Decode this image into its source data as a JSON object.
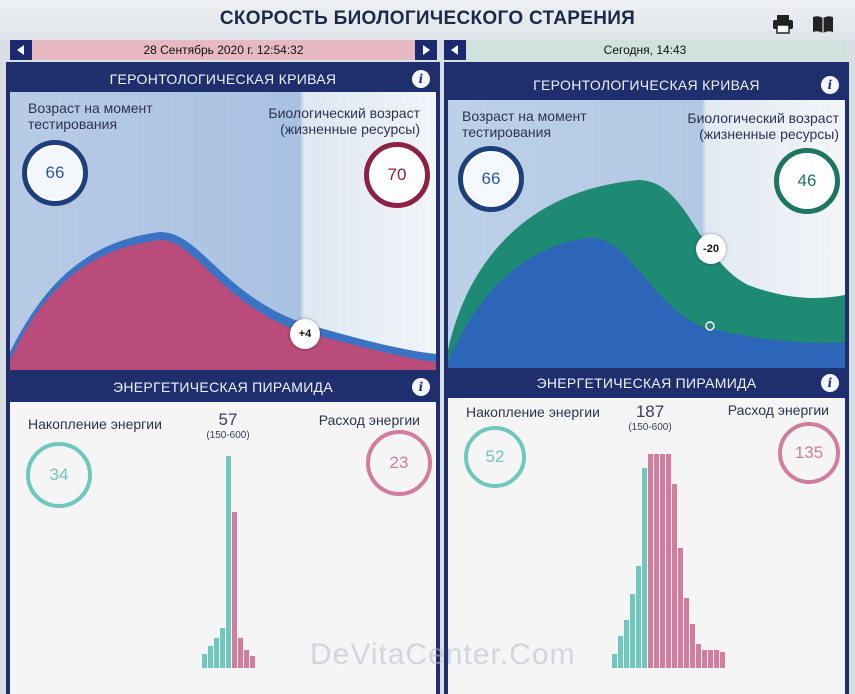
{
  "app": {
    "title": "СКОРОСТЬ БИОЛОГИЧЕСКОГО СТАРЕНИЯ"
  },
  "icons": {
    "print": "print-icon",
    "manual": "book-icon",
    "info": "info-icon"
  },
  "colors": {
    "navy": "#1f2f6d",
    "wine": "#8c2143",
    "blue": "#2d66b8",
    "teal": "#1e7561",
    "accumulation": "#6ec8bd",
    "expenditure": "#d27c9e"
  },
  "left": {
    "date": "28 Сентябрь 2020 г. 12:54:32",
    "curve": {
      "header": "ГЕРОНТОЛОГИЧЕСКАЯ КРИВАЯ",
      "info": "i",
      "test_age_label": "Возраст на момент тестирования",
      "test_age": "66",
      "bio_age_label": "Биологический возраст (жизненные ресурсы)",
      "bio_age": "70",
      "delta": "+4"
    },
    "pyramid": {
      "header": "ЭНЕРГЕТИЧЕСКАЯ ПИРАМИДА",
      "info": "i",
      "accumulation_label": "Накопление энергии",
      "accumulation": "34",
      "expenditure_label": "Расход энергии",
      "expenditure": "23",
      "total": "57",
      "range": "(150-600)"
    }
  },
  "right": {
    "date": "Сегодня, 14:43",
    "curve": {
      "header": "ГЕРОНТОЛОГИЧЕСКАЯ КРИВАЯ",
      "info": "i",
      "test_age_label": "Возраст на момент тестирования",
      "test_age": "66",
      "bio_age_label": "Биологический возраст (жизненные ресурсы)",
      "bio_age": "46",
      "delta": "-20"
    },
    "pyramid": {
      "header": "ЭНЕРГЕТИЧЕСКАЯ ПИРАМИДА",
      "info": "i",
      "accumulation_label": "Накопление энергии",
      "accumulation": "52",
      "expenditure_label": "Расход энергии",
      "expenditure": "135",
      "total": "187",
      "range": "(150-600)"
    }
  },
  "watermark": "DeVitaCenter.Com"
}
